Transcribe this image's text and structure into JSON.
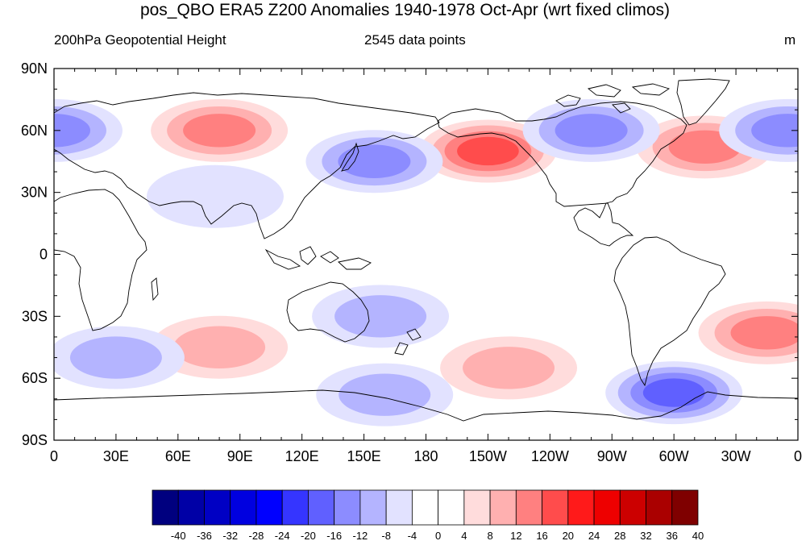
{
  "title": "pos_QBO ERA5 Z200 Anomalies 1940-1978 Oct-Apr (wrt fixed climos)",
  "subtitle_left": "200hPa Geopotential Height",
  "subtitle_center": "2545 data points",
  "subtitle_right": "m",
  "map": {
    "projection": "cylindrical equidistant",
    "lon_range": [
      0,
      360
    ],
    "lat_range": [
      -90,
      90
    ],
    "lat_ticks": [
      "90N",
      "60N",
      "30N",
      "0",
      "30S",
      "60S",
      "90S"
    ],
    "lon_ticks": [
      "0",
      "30E",
      "60E",
      "90E",
      "120E",
      "150E",
      "180",
      "150W",
      "120W",
      "90W",
      "60W",
      "30W",
      "0"
    ]
  },
  "colorbar": {
    "labels": [
      "-40",
      "-36",
      "-32",
      "-28",
      "-24",
      "-20",
      "-16",
      "-12",
      "-8",
      "-4",
      "0",
      "4",
      "8",
      "12",
      "16",
      "20",
      "24",
      "28",
      "32",
      "36",
      "40"
    ],
    "colors": [
      "#00007f",
      "#0000a6",
      "#0000c4",
      "#0000e0",
      "#0000ff",
      "#3535ff",
      "#6060ff",
      "#8c8cff",
      "#b4b4ff",
      "#e2e2ff",
      "#ffffff",
      "#ffffff",
      "#ffdcdc",
      "#ffb0b0",
      "#ff8080",
      "#ff4c4c",
      "#ff1a1a",
      "#ee0000",
      "#cc0000",
      "#aa0000",
      "#7f0000"
    ]
  },
  "anomalies": [
    {
      "lon": 80,
      "lat": 60,
      "value": 14
    },
    {
      "lon": 210,
      "lat": 50,
      "value": 16
    },
    {
      "lon": 315,
      "lat": 52,
      "value": 14
    },
    {
      "lon": 80,
      "lat": -45,
      "value": 10
    },
    {
      "lon": 220,
      "lat": -55,
      "value": 10
    },
    {
      "lon": 345,
      "lat": -38,
      "value": 12
    },
    {
      "lon": 260,
      "lat": 60,
      "value": -14
    },
    {
      "lon": 155,
      "lat": 45,
      "value": -12
    },
    {
      "lon": 355,
      "lat": 60,
      "value": -12
    },
    {
      "lon": 0,
      "lat": 60,
      "value": -12
    },
    {
      "lon": 300,
      "lat": -67,
      "value": -18
    },
    {
      "lon": 160,
      "lat": -68,
      "value": -10
    },
    {
      "lon": 30,
      "lat": -50,
      "value": -10
    },
    {
      "lon": 158,
      "lat": -30,
      "value": -9
    },
    {
      "lon": 78,
      "lat": 28,
      "value": -6
    }
  ]
}
